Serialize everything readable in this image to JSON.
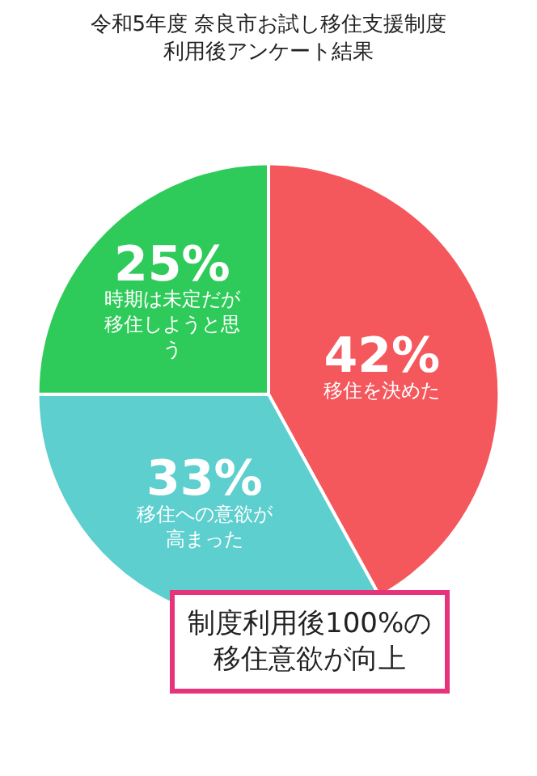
{
  "chart_data": {
    "type": "pie",
    "title": "令和5年度 奈良市お試し移住支援制度利用後アンケート結果",
    "categories": [
      "移住を決めた",
      "移住への意欲が高まった",
      "時期は未定だが移住しようと思う"
    ],
    "values": [
      42,
      33,
      25
    ],
    "value_labels": [
      "42%",
      "33%",
      "25%"
    ],
    "colors": [
      "#f4575c",
      "#5dcfce",
      "#2fcb5a"
    ],
    "legend": false,
    "annotations": [
      "制度利用後100%の移住意欲が向上"
    ]
  }
}
